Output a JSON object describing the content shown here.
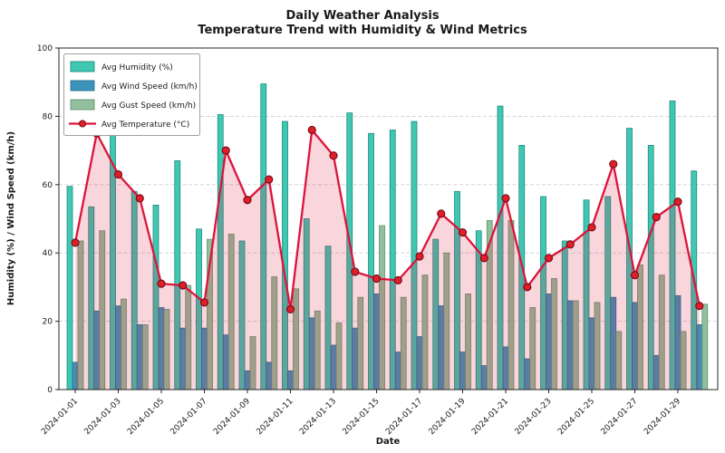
{
  "chart_data": {
    "type": "combo-bar-line",
    "title": "Daily Weather Analysis",
    "subtitle": "Temperature Trend with Humidity & Wind Metrics",
    "xlabel": "Date",
    "ylabel": "Humidity (%) / Wind Speed (km/h)",
    "ylim": [
      0,
      100
    ],
    "yticks": [
      0,
      20,
      40,
      60,
      80,
      100
    ],
    "grid": "horizontal-dashed",
    "legend_position": "upper-left",
    "categories": [
      "2024-01-01",
      "2024-01-02",
      "2024-01-03",
      "2024-01-04",
      "2024-01-05",
      "2024-01-06",
      "2024-01-07",
      "2024-01-08",
      "2024-01-09",
      "2024-01-10",
      "2024-01-11",
      "2024-01-12",
      "2024-01-13",
      "2024-01-14",
      "2024-01-15",
      "2024-01-16",
      "2024-01-17",
      "2024-01-18",
      "2024-01-19",
      "2024-01-20",
      "2024-01-21",
      "2024-01-22",
      "2024-01-23",
      "2024-01-24",
      "2024-01-25",
      "2024-01-26",
      "2024-01-27",
      "2024-01-28",
      "2024-01-29",
      "2024-01-30"
    ],
    "x_tick_labels": [
      "2024-01-01",
      "2024-01-03",
      "2024-01-05",
      "2024-01-07",
      "2024-01-09",
      "2024-01-11",
      "2024-01-13",
      "2024-01-15",
      "2024-01-17",
      "2024-01-19",
      "2024-01-21",
      "2024-01-23",
      "2024-01-25",
      "2024-01-27",
      "2024-01-29"
    ],
    "series": [
      {
        "name": "Avg Humidity (%)",
        "type": "bar",
        "color": "#40c7b2",
        "edge_color": "#1f8a7d",
        "values": [
          59.5,
          53.5,
          81.5,
          58,
          54,
          67,
          47,
          80.5,
          43.5,
          89.5,
          78.5,
          50,
          42,
          81,
          75,
          76,
          78.5,
          44,
          58,
          46.5,
          83,
          71.5,
          56.5,
          43.5,
          55.5,
          56.5,
          76.5,
          71.5,
          84.5,
          64
        ]
      },
      {
        "name": "Avg Wind Speed (km/h)",
        "type": "bar",
        "color": "#3e93bc",
        "edge_color": "#26708f",
        "values": [
          8,
          23,
          24.5,
          19,
          24,
          18,
          18,
          16,
          5.5,
          8,
          5.5,
          21,
          13,
          18,
          28,
          11,
          15.5,
          24.5,
          11,
          7,
          12.5,
          9,
          28,
          26,
          21,
          27,
          25.5,
          10,
          27.5,
          19
        ]
      },
      {
        "name": "Avg Gust Speed (km/h)",
        "type": "bar",
        "color": "#92bf9e",
        "edge_color": "#64926f",
        "values": [
          43.5,
          46.5,
          26.5,
          19,
          23.5,
          30.5,
          44,
          45.5,
          15.5,
          33,
          29.5,
          23,
          19.5,
          27,
          48,
          27,
          33.5,
          40,
          28,
          49.5,
          49.5,
          24,
          32.5,
          26,
          25.5,
          17,
          36.5,
          33.5,
          17,
          25
        ]
      },
      {
        "name": "Avg Temperature (°C)",
        "type": "line",
        "color": "#dc143c",
        "marker": "circle",
        "marker_fill": "#e21f26",
        "marker_edge_color": "#7a0c1e",
        "area_fill": "rgba(220,20,60,0.18)",
        "values": [
          43,
          75,
          63,
          56,
          31,
          30.5,
          25.5,
          70,
          55.5,
          61.5,
          23.5,
          76,
          68.5,
          34.5,
          32.5,
          32,
          39,
          51.5,
          46,
          38.5,
          56,
          30,
          38.5,
          42.5,
          47.5,
          66,
          33.5,
          50.5,
          55,
          24.5
        ]
      }
    ]
  }
}
